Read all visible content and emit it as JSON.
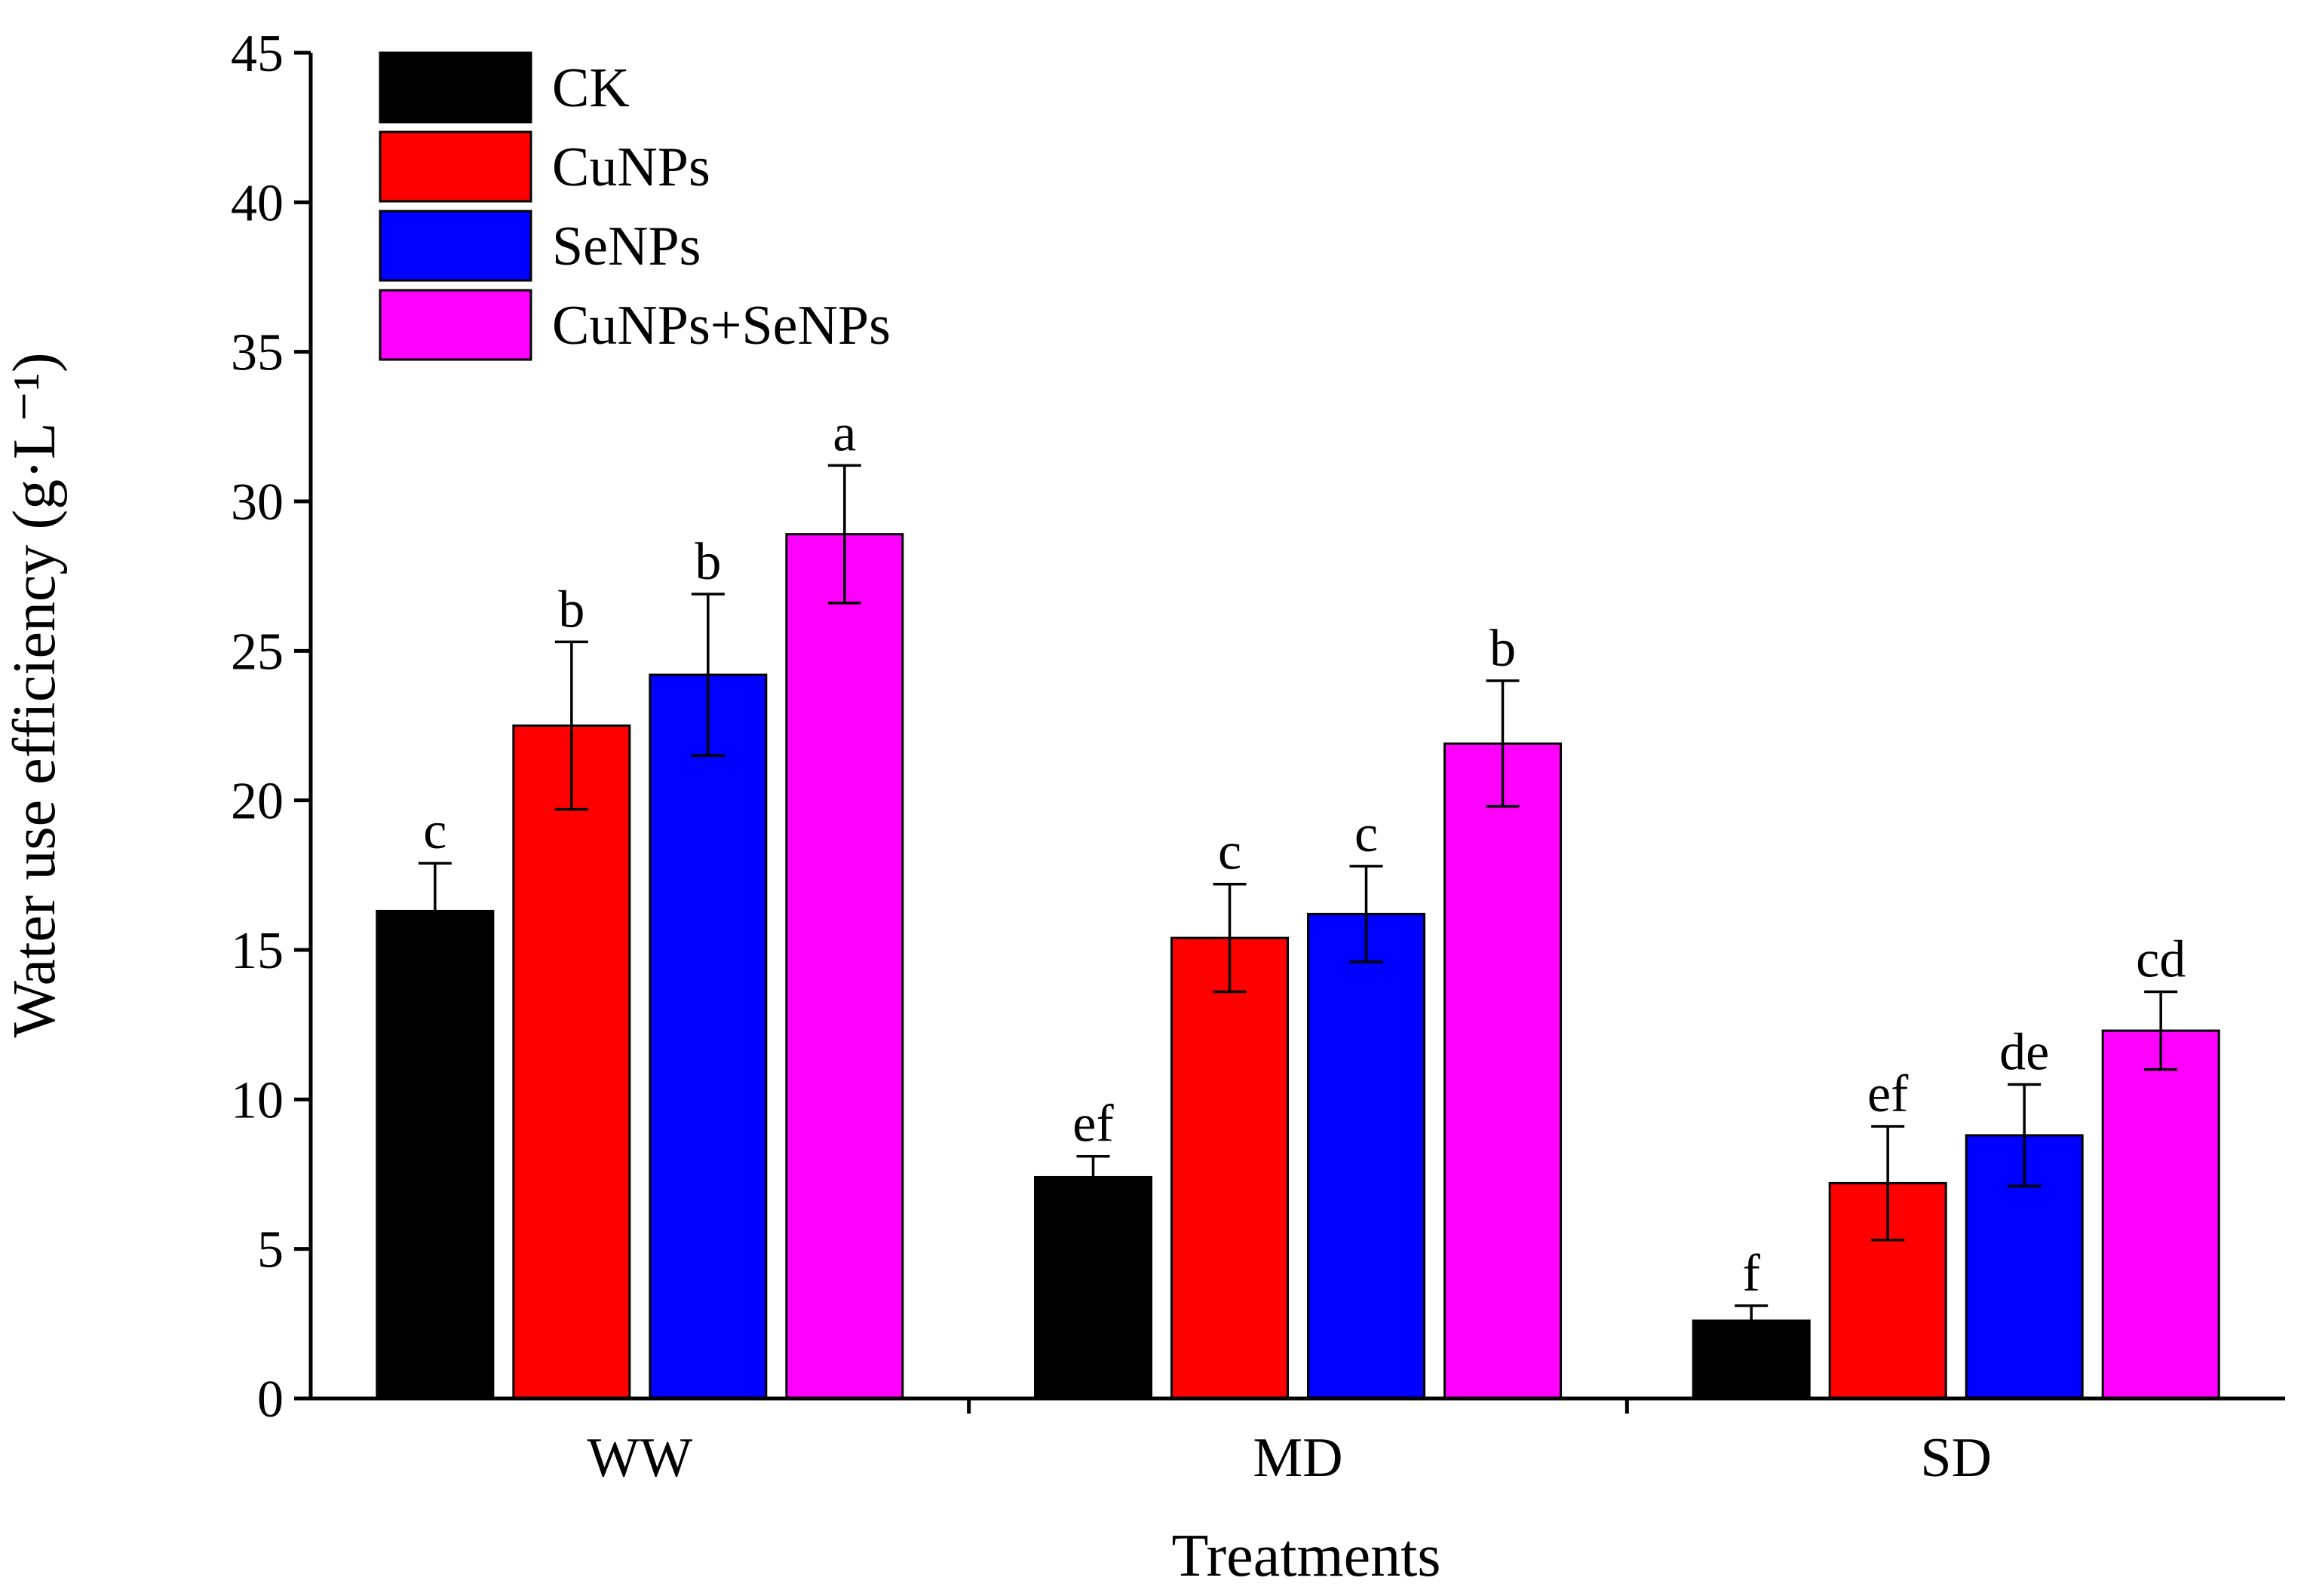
{
  "chart_data": {
    "type": "bar",
    "title": "",
    "xlabel": "Treatments",
    "ylabel": "Water use efficiency (g·L⁻¹)",
    "ylim": [
      0,
      45
    ],
    "yticks": [
      0,
      5,
      10,
      15,
      20,
      25,
      30,
      35,
      40,
      45
    ],
    "grid": false,
    "legend_position": "top-left",
    "categories": [
      "WW",
      "MD",
      "SD"
    ],
    "series": [
      {
        "name": "CK",
        "color": "#000000",
        "values": [
          16.3,
          7.4,
          2.6
        ],
        "errors": [
          1.6,
          0.7,
          0.5
        ],
        "letters": [
          "c",
          "ef",
          "f"
        ]
      },
      {
        "name": "CuNPs",
        "color": "#ff0000",
        "values": [
          22.5,
          15.4,
          7.2
        ],
        "errors": [
          2.8,
          1.8,
          1.9
        ],
        "letters": [
          "b",
          "c",
          "ef"
        ]
      },
      {
        "name": "SeNPs",
        "color": "#0000ff",
        "values": [
          24.2,
          16.2,
          8.8
        ],
        "errors": [
          2.7,
          1.6,
          1.7
        ],
        "letters": [
          "b",
          "c",
          "de"
        ]
      },
      {
        "name": "CuNPs+SeNPs",
        "color": "#ff00ff",
        "values": [
          28.9,
          21.9,
          12.3
        ],
        "errors": [
          2.3,
          2.1,
          1.3
        ],
        "letters": [
          "a",
          "b",
          "cd"
        ]
      }
    ]
  }
}
